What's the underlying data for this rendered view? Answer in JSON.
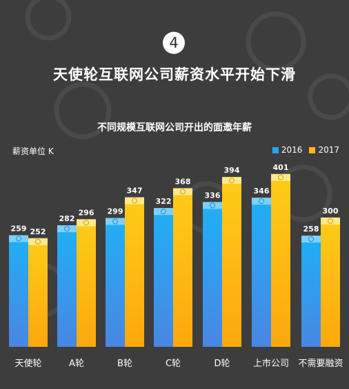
{
  "header": {
    "step": "4",
    "headline": "天使轮互联网公司薪资水平开始下滑"
  },
  "colors": {
    "background": "#3d3d3d",
    "series_2016": "#21a8f0",
    "series_2017": "#fdb913"
  },
  "chart_data": {
    "type": "bar",
    "title": "不同规模互联网公司开出的面邀年薪",
    "ylabel": "薪资单位 K",
    "xlabel": "",
    "legend_position": "top-right",
    "grid": false,
    "ylim": [
      0,
      450
    ],
    "categories": [
      "天使轮",
      "A轮",
      "B轮",
      "C轮",
      "D轮",
      "上市公司",
      "不需要融资"
    ],
    "series": [
      {
        "name": "2016",
        "values": [
          259,
          282,
          299,
          322,
          336,
          346,
          258
        ]
      },
      {
        "name": "2017",
        "values": [
          252,
          296,
          347,
          368,
          394,
          401,
          300
        ]
      }
    ]
  }
}
